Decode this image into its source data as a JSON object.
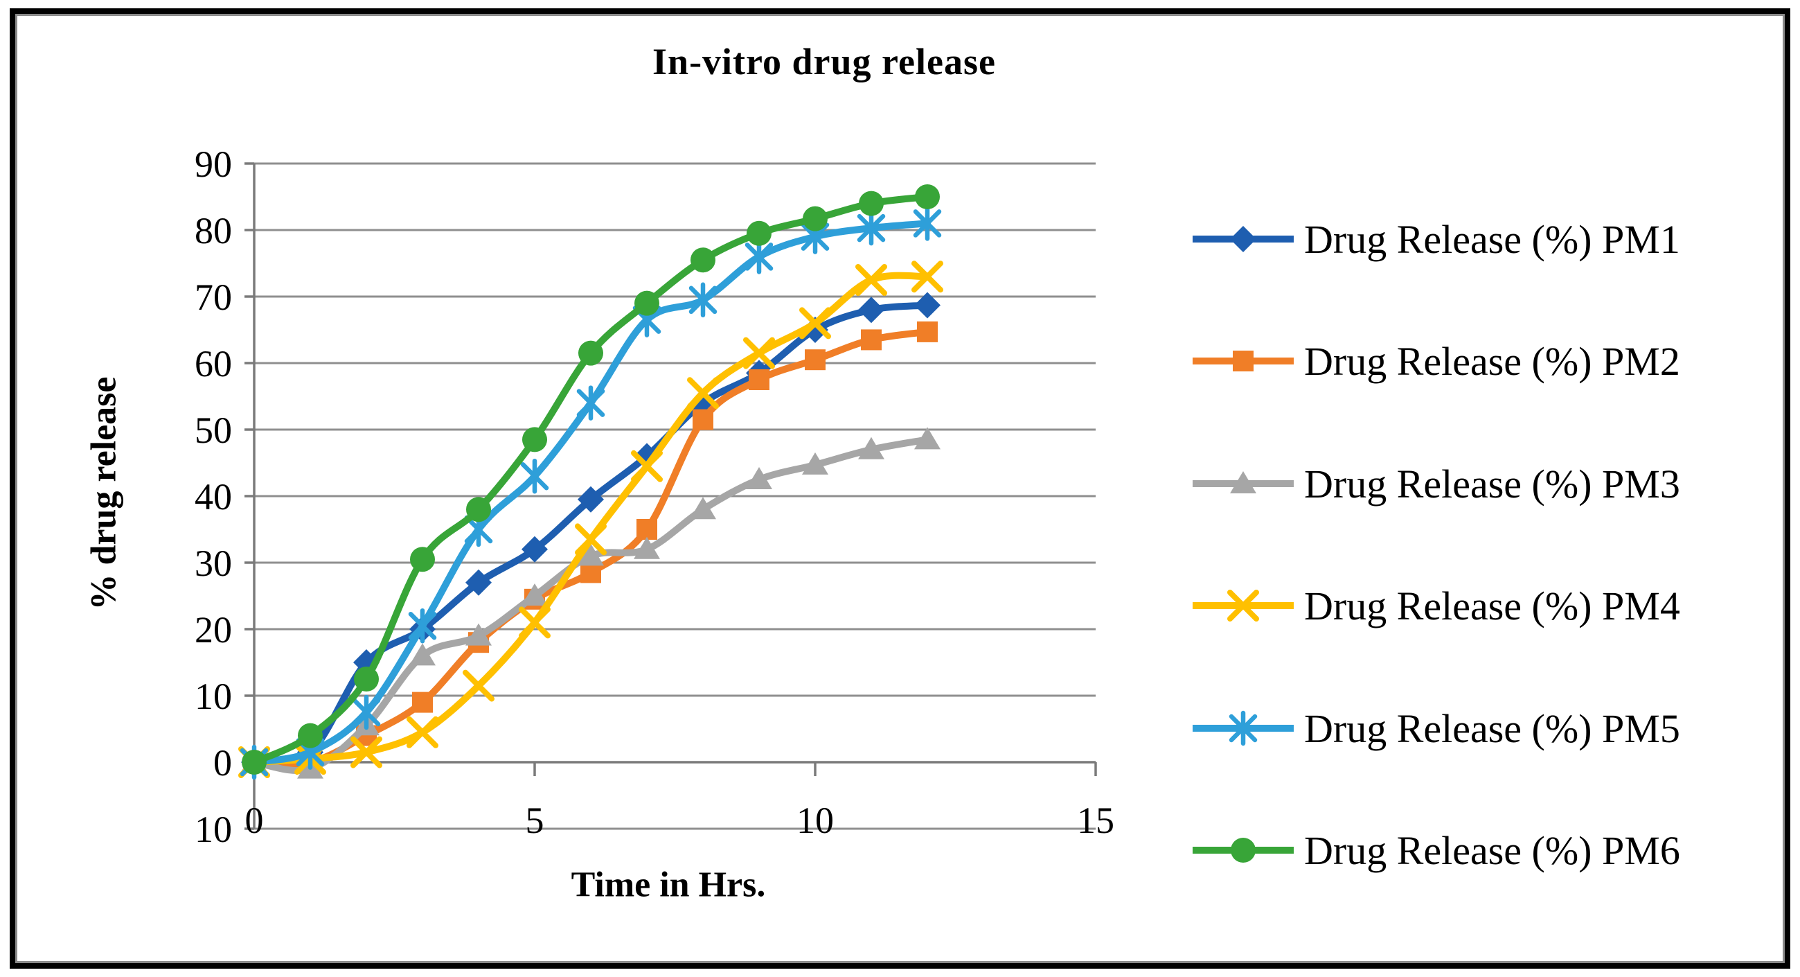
{
  "title": "In-vitro drug release",
  "chart_data": {
    "type": "line",
    "title": "In-vitro drug release",
    "xlabel": "Time in Hrs.",
    "ylabel": "% drug release",
    "x": [
      0,
      1,
      2,
      3,
      4,
      5,
      6,
      7,
      8,
      9,
      10,
      11,
      12
    ],
    "xlim": [
      0,
      15
    ],
    "ylim": [
      -10,
      90
    ],
    "x_ticks": [
      0,
      5,
      10,
      15
    ],
    "y_tick_step": 10,
    "grid": "horizontal",
    "legend_position": "right",
    "series": [
      {
        "name": "Drug Release (%) PM1",
        "marker": "diamond",
        "color": "#1E5EB0",
        "values": [
          0,
          1.5,
          15,
          20,
          27,
          32,
          39.5,
          46,
          54,
          58.5,
          65,
          68,
          68.7
        ]
      },
      {
        "name": "Drug Release (%) PM2",
        "marker": "square",
        "color": "#F07E27",
        "values": [
          0,
          0,
          4,
          9,
          18,
          24.5,
          28.5,
          35,
          51.5,
          57.5,
          60.5,
          63.5,
          64.7
        ]
      },
      {
        "name": "Drug Release (%) PM3",
        "marker": "triangle",
        "color": "#A6A6A6",
        "values": [
          0,
          -1,
          5.5,
          16,
          19,
          25,
          31,
          32,
          38,
          42.5,
          44.7,
          47,
          48.5
        ]
      },
      {
        "name": "Drug Release (%) PM4",
        "marker": "x",
        "color": "#FFC000",
        "values": [
          0,
          0.5,
          1.5,
          4.5,
          11.5,
          21,
          33.5,
          44.5,
          55.5,
          61.5,
          66,
          72.5,
          73
        ]
      },
      {
        "name": "Drug Release (%) PM5",
        "marker": "asterisk",
        "color": "#2E9FD9",
        "values": [
          0,
          1.5,
          7.5,
          20.5,
          35,
          43,
          54,
          66.5,
          69.5,
          76,
          79,
          80.3,
          81
        ]
      },
      {
        "name": "Drug Release (%) PM6",
        "marker": "circle",
        "color": "#38A538",
        "values": [
          0,
          4,
          12.5,
          30.5,
          38,
          48.5,
          61.5,
          69,
          75.5,
          79.5,
          81.7,
          84,
          85
        ]
      }
    ]
  },
  "styles": {
    "grid_color": "#8F8F8F",
    "axis_color": "#7A7A7A",
    "text_color": "#000000",
    "background": "#FFFFFF",
    "frame_border": "#000000",
    "frame_inner_border": "#8A8A8A"
  }
}
